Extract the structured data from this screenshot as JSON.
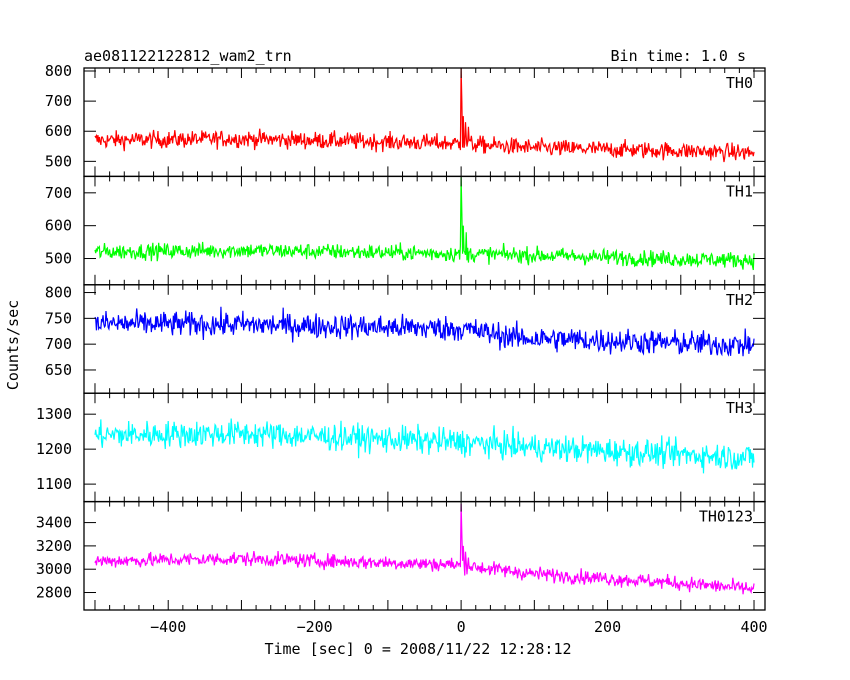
{
  "chart_data": {
    "type": "line",
    "title_left": "ae081122122812_wam2_trn",
    "title_right": "Bin time: 1.0 s",
    "xlabel": "Time [sec] 0 = 2008/11/22 12:28:12",
    "ylabel": "Counts/sec",
    "xlim": [
      -515,
      415
    ],
    "x_ticks": [
      -400,
      -200,
      0,
      200,
      400
    ],
    "x_range": [
      -500,
      400
    ],
    "bin_time": 1.0,
    "panels": [
      {
        "name": "TH0",
        "color": "#ff0000",
        "ylim": [
          450,
          810
        ],
        "y_ticks": [
          500,
          600,
          700,
          800
        ],
        "level": [
          [
            -500,
            570
          ],
          [
            -300,
            575
          ],
          [
            -10,
            560
          ],
          [
            100,
            545
          ],
          [
            300,
            535
          ],
          [
            400,
            528
          ]
        ],
        "noise": 28,
        "peaks": [
          {
            "x": 0,
            "value": 810
          },
          {
            "x": 1,
            "value": 700
          },
          {
            "x": 3,
            "value": 650
          },
          {
            "x": 6,
            "value": 630
          },
          {
            "x": 10,
            "value": 615
          }
        ]
      },
      {
        "name": "TH1",
        "color": "#00ff00",
        "ylim": [
          420,
          750
        ],
        "y_ticks": [
          500,
          600,
          700
        ],
        "level": [
          [
            -500,
            520
          ],
          [
            -300,
            525
          ],
          [
            -10,
            515
          ],
          [
            100,
            510
          ],
          [
            300,
            498
          ],
          [
            400,
            495
          ]
        ],
        "noise": 24,
        "peaks": [
          {
            "x": 0,
            "value": 750
          },
          {
            "x": 1,
            "value": 640
          },
          {
            "x": 3,
            "value": 600
          },
          {
            "x": 7,
            "value": 580
          }
        ]
      },
      {
        "name": "TH2",
        "color": "#0000ff",
        "ylim": [
          605,
          815
        ],
        "y_ticks": [
          650,
          700,
          750,
          800
        ],
        "level": [
          [
            -500,
            740
          ],
          [
            -300,
            738
          ],
          [
            0,
            730
          ],
          [
            80,
            712
          ],
          [
            300,
            702
          ],
          [
            400,
            698
          ]
        ],
        "noise": 24,
        "peaks": []
      },
      {
        "name": "TH3",
        "color": "#00ffff",
        "ylim": [
          1050,
          1360
        ],
        "y_ticks": [
          1100,
          1200,
          1300
        ],
        "level": [
          [
            -500,
            1240
          ],
          [
            -300,
            1245
          ],
          [
            0,
            1220
          ],
          [
            100,
            1205
          ],
          [
            300,
            1185
          ],
          [
            400,
            1175
          ]
        ],
        "noise": 38,
        "peaks": []
      },
      {
        "name": "TH0123",
        "color": "#ff00ff",
        "ylim": [
          2650,
          3580
        ],
        "y_ticks": [
          2800,
          3000,
          3200,
          3400
        ],
        "level": [
          [
            -500,
            3070
          ],
          [
            -300,
            3090
          ],
          [
            -10,
            3040
          ],
          [
            100,
            2960
          ],
          [
            300,
            2880
          ],
          [
            400,
            2830
          ]
        ],
        "noise": 60,
        "peaks": [
          {
            "x": 0,
            "value": 3560
          },
          {
            "x": 1,
            "value": 3300
          },
          {
            "x": 3,
            "value": 3200
          },
          {
            "x": 6,
            "value": 3150
          },
          {
            "x": 10,
            "value": 3100
          }
        ]
      }
    ]
  }
}
